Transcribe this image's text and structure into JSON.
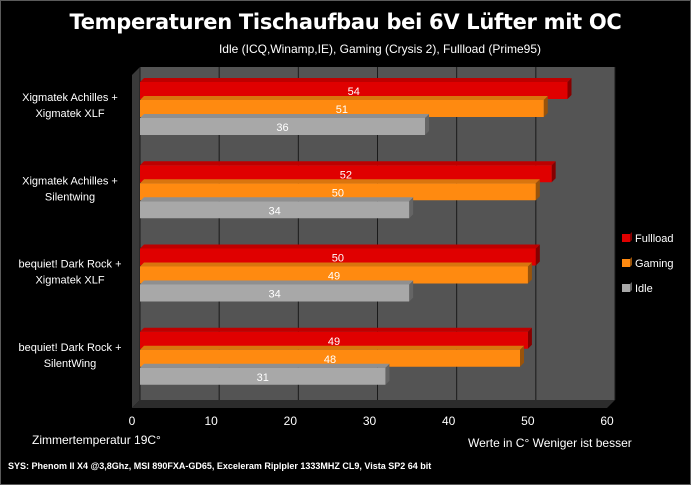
{
  "chart_data": {
    "type": "bar",
    "orientation": "horizontal",
    "title": "Temperaturen Tischaufbau bei 6V Lüfter mit OC",
    "subtitle": "Idle (ICQ,Winamp,IE), Gaming (Crysis 2), Fullload (Prime95)",
    "categories": [
      [
        "Xigmatek Achilles +",
        "Xigmatek XLF"
      ],
      [
        "Xigmatek Achilles +",
        "Silentwing"
      ],
      [
        "bequiet! Dark Rock +",
        "Xigmatek XLF"
      ],
      [
        "bequiet! Dark Rock +",
        "SilentWing"
      ]
    ],
    "series": [
      {
        "name": "Fullload",
        "color": "#e00000",
        "values": [
          54,
          52,
          50,
          49
        ]
      },
      {
        "name": "Gaming",
        "color": "#ff8a10",
        "values": [
          51,
          50,
          49,
          48
        ]
      },
      {
        "name": "Idle",
        "color": "#a8a8a8",
        "values": [
          36,
          34,
          34,
          31
        ]
      }
    ],
    "x_ticks": [
      "0",
      "10",
      "20",
      "30",
      "40",
      "50",
      "60"
    ],
    "xlim": [
      0,
      60
    ],
    "grid": "vertical",
    "legend_position": "right",
    "plot_background": "#545454"
  },
  "notes": {
    "left": "Zimmertemperatur 19C°",
    "right": "Werte in C° Weniger ist besser",
    "system": "SYS: Phenom II X4 @3,8Ghz, MSI 890FXA-GD65, Exceleram Riplpler 1333MHZ CL9, Vista SP2 64 bit"
  }
}
